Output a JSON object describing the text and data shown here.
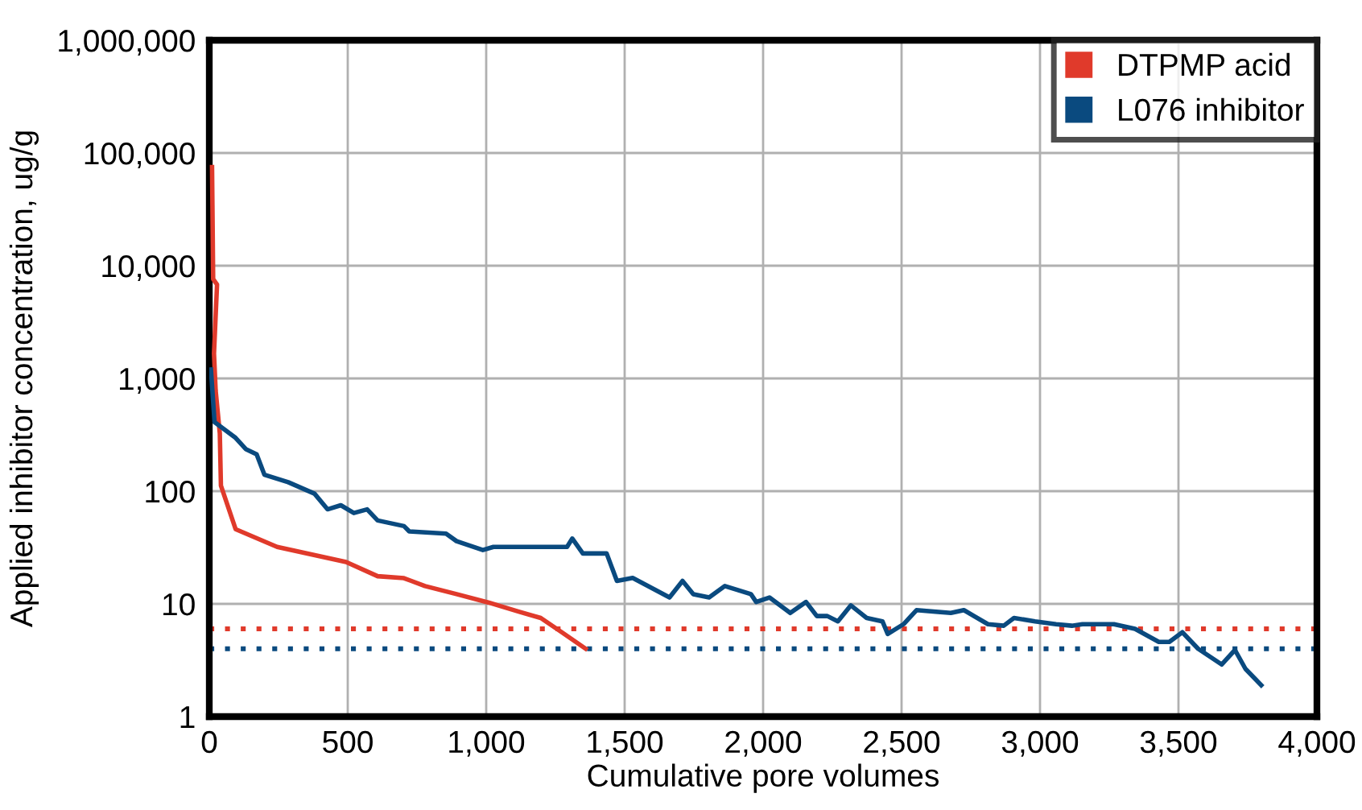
{
  "chart_data": {
    "type": "line",
    "xlabel": "Cumulative pore volumes",
    "ylabel": "Applied inhibitor concentration, ug/g",
    "log": "y",
    "grid": true,
    "legend": "top right",
    "marker": "none",
    "line_style": "solid",
    "xlim": [
      0,
      4000
    ],
    "xticks": [
      0,
      500,
      {
        "value": 1000,
        "label": "1,000"
      },
      {
        "value": 1500,
        "label": "1,500"
      },
      {
        "value": 2000,
        "label": "2,000"
      },
      {
        "value": 2500,
        "label": "2,500"
      },
      {
        "value": 3000,
        "label": "3,000"
      },
      {
        "value": 3500,
        "label": "3,500"
      },
      {
        "value": 4000,
        "label": "4,000"
      }
    ],
    "ylim": [
      1,
      1000000
    ],
    "yticks": [
      1,
      10,
      100,
      {
        "value": 1000,
        "label": "1,000"
      },
      {
        "value": 10000,
        "label": "10,000"
      },
      {
        "value": 100000,
        "label": "100,000"
      },
      {
        "value": 1000000,
        "label": "1,000,000"
      }
    ],
    "series": [
      {
        "name": "DTPMP acid",
        "color": "#e03a2b",
        "x": [
          10,
          14,
          28,
          17,
          23,
          38,
          42,
          95,
          245,
          494,
          608,
          703,
          779,
          893,
          1007,
          1120,
          1197,
          1273,
          1359
        ],
        "values": [
          75000,
          7600,
          6800,
          1660,
          780,
          325,
          112,
          46,
          32,
          23.5,
          17.6,
          16.9,
          14.4,
          12.2,
          10.3,
          8.5,
          7.5,
          5.6,
          4
        ]
      },
      {
        "name": "L076 inhibitor",
        "color": "#0a4a7f",
        "x": [
          6,
          19,
          95,
          133,
          171,
          199,
          285,
          380,
          427,
          475,
          522,
          570,
          608,
          703,
          722,
          855,
          893,
          988,
          1026,
          1292,
          1311,
          1349,
          1435,
          1472,
          1529,
          1662,
          1709,
          1748,
          1805,
          1862,
          1956,
          1975,
          2023,
          2098,
          2155,
          2194,
          2232,
          2270,
          2317,
          2374,
          2431,
          2450,
          2507,
          2554,
          2678,
          2725,
          2812,
          2869,
          2906,
          2982,
          3058,
          3115,
          3153,
          3267,
          3343,
          3429,
          3467,
          3514,
          3571,
          3656,
          3704,
          3742,
          3799
        ],
        "values": [
          1200,
          410,
          297,
          235,
          212,
          140,
          120,
          95,
          69,
          75,
          64,
          69,
          55,
          49,
          44,
          42,
          36,
          30,
          32,
          32,
          38,
          28,
          28,
          16,
          17,
          11.4,
          16,
          12.2,
          11.4,
          14.4,
          12.2,
          10.4,
          11.4,
          8.3,
          10.4,
          7.8,
          7.8,
          7,
          9.7,
          7.5,
          7,
          5.4,
          6.6,
          8.8,
          8.3,
          8.8,
          6.6,
          6.4,
          7.5,
          7,
          6.6,
          6.4,
          6.6,
          6.6,
          6,
          4.6,
          4.6,
          5.6,
          4,
          2.9,
          3.9,
          2.65,
          1.9
        ]
      }
    ],
    "ref_lines": [
      {
        "axis": "y",
        "value": 6,
        "color": "#e03a2b",
        "line_style": "dotted"
      },
      {
        "axis": "y",
        "value": 4,
        "color": "#0a4a7f",
        "line_style": "dotted"
      }
    ]
  }
}
